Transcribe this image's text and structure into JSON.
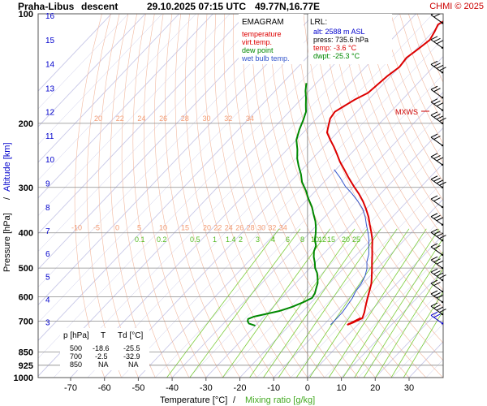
{
  "header": {
    "title": "Praha-Libus",
    "mode": "descent",
    "datetime": "29.10.2025 07:15 UTC",
    "position": "49.77N,16.77E",
    "copyright": "CHMI © 2025"
  },
  "legend": {
    "title": "EMAGRAM",
    "items": [
      {
        "label": "temperature",
        "color": "#dd0000"
      },
      {
        "label": "virt.temp.",
        "color": "#dd0000"
      },
      {
        "label": "dew point",
        "color": "#008800"
      },
      {
        "label": "wet bulb temp.",
        "color": "#3355cc"
      }
    ]
  },
  "lrl": {
    "title": "LRL:",
    "alt": "alt: 2588 m ASL",
    "press": "press: 735.6 hPa",
    "temp": "temp: -3.6 °C",
    "dwpt": "dwpt: -25.3 °C",
    "colors": {
      "alt": "#0000cc",
      "press": "#000000",
      "temp": "#dd0000",
      "dwpt": "#008800"
    }
  },
  "table": {
    "headers": [
      "p [hPa]",
      "T",
      "Td [°C]"
    ],
    "rows": [
      [
        "500",
        "-18.6",
        "-25.5"
      ],
      [
        "700",
        "-2.5",
        "-32.9"
      ],
      [
        "850",
        "NA",
        "NA"
      ]
    ]
  },
  "axes": {
    "xlabel": "Temperature [°C]",
    "xlabel_sep": "/",
    "xlabel2": "Mixing ratio [g/kg]",
    "ylabel": "Pressure [hPa]",
    "ylabel_sep": "/",
    "ylabel2": "Altitude [km]",
    "maxws": "MXWS"
  },
  "chart_data": {
    "type": "line",
    "x_ticks": [
      -70,
      -60,
      -50,
      -40,
      -30,
      -20,
      -10,
      0,
      10,
      20,
      30
    ],
    "xlim": [
      -80,
      35
    ],
    "ylim": [
      1000,
      100
    ],
    "y_scale": "log",
    "pressure_ticks": [
      100,
      200,
      300,
      400,
      500,
      600,
      700,
      850,
      925,
      1000
    ],
    "altitude_ticks": [
      {
        "km": 16,
        "p": 101
      },
      {
        "km": 15,
        "p": 118
      },
      {
        "km": 14,
        "p": 137
      },
      {
        "km": 13,
        "p": 160
      },
      {
        "km": 12,
        "p": 186
      },
      {
        "km": 11,
        "p": 216
      },
      {
        "km": 10,
        "p": 251
      },
      {
        "km": 9,
        "p": 292
      },
      {
        "km": 8,
        "p": 340
      },
      {
        "km": 7,
        "p": 394
      },
      {
        "km": 6,
        "p": 456
      },
      {
        "km": 5,
        "p": 527
      },
      {
        "km": 4,
        "p": 609
      },
      {
        "km": 3,
        "p": 703
      }
    ],
    "grid": true,
    "series": [
      {
        "name": "temperature",
        "color": "#dd0000",
        "points": [
          [
            -60.0,
            100
          ],
          [
            -59,
            102
          ],
          [
            -60.5,
            107
          ],
          [
            -59.5,
            112
          ],
          [
            -58.6,
            118
          ],
          [
            -59.5,
            125
          ],
          [
            -60.5,
            132
          ],
          [
            -60.0,
            140
          ],
          [
            -61.0,
            148
          ],
          [
            -61.5,
            156
          ],
          [
            -62.0,
            165
          ],
          [
            -64.0,
            172
          ],
          [
            -65.5,
            180
          ],
          [
            -66.5,
            186
          ],
          [
            -66.0,
            194
          ],
          [
            -64.5,
            203
          ],
          [
            -63.0,
            212
          ],
          [
            -60.0,
            222
          ],
          [
            -57.0,
            232
          ],
          [
            -54.0,
            243
          ],
          [
            -51.0,
            255
          ],
          [
            -47.5,
            268
          ],
          [
            -44.0,
            282
          ],
          [
            -40.0,
            298
          ],
          [
            -36.5,
            312
          ],
          [
            -33.0,
            328
          ],
          [
            -30.0,
            344
          ],
          [
            -27.0,
            362
          ],
          [
            -24.5,
            380
          ],
          [
            -22.0,
            398
          ],
          [
            -19.5,
            418
          ],
          [
            -17.5,
            438
          ],
          [
            -15.5,
            458
          ],
          [
            -13.5,
            480
          ],
          [
            -11.5,
            502
          ],
          [
            -9.5,
            526
          ],
          [
            -7.5,
            552
          ],
          [
            -6.0,
            578
          ],
          [
            -4.5,
            606
          ],
          [
            -3.0,
            634
          ],
          [
            -1.5,
            662
          ],
          [
            -0.5,
            686
          ],
          [
            -2.0,
            706
          ],
          [
            -3.0,
            716
          ]
        ]
      },
      {
        "name": "virt.temp.",
        "color": "#dd0000",
        "points": [
          [
            -3.1,
            716
          ],
          [
            -2.4,
            706
          ],
          [
            -1.0,
            686
          ]
        ]
      },
      {
        "name": "dew point",
        "color": "#008800",
        "points": [
          [
            -83.0,
            155
          ],
          [
            -81.0,
            163
          ],
          [
            -79.0,
            170
          ],
          [
            -77.0,
            178
          ],
          [
            -75.0,
            186
          ],
          [
            -73.5,
            196
          ],
          [
            -72.0,
            208
          ],
          [
            -70.0,
            222
          ],
          [
            -67.0,
            236
          ],
          [
            -64.5,
            250
          ],
          [
            -62.0,
            262
          ],
          [
            -59.0,
            276
          ],
          [
            -56.5,
            290
          ],
          [
            -53.0,
            306
          ],
          [
            -50.0,
            322
          ],
          [
            -46.5,
            340
          ],
          [
            -44.0,
            356
          ],
          [
            -41.5,
            372
          ],
          [
            -39.5,
            388
          ],
          [
            -38.0,
            402
          ],
          [
            -36.5,
            418
          ],
          [
            -34.5,
            434
          ],
          [
            -33.5,
            450
          ],
          [
            -32.0,
            466
          ],
          [
            -30.0,
            484
          ],
          [
            -28.5,
            500
          ],
          [
            -26.5,
            516
          ],
          [
            -25.0,
            532
          ],
          [
            -23.5,
            550
          ],
          [
            -22.5,
            568
          ],
          [
            -21.5,
            586
          ],
          [
            -21.0,
            604
          ],
          [
            -22.5,
            622
          ],
          [
            -24.5,
            640
          ],
          [
            -27.0,
            656
          ],
          [
            -30.5,
            670
          ],
          [
            -33.0,
            680
          ],
          [
            -34.0,
            690
          ],
          [
            -33.5,
            700
          ],
          [
            -32.5,
            710
          ],
          [
            -30.0,
            720
          ]
        ]
      },
      {
        "name": "wet bulb temp.",
        "color": "#3355cc",
        "points": [
          [
            -50.5,
            268
          ],
          [
            -46.5,
            282
          ],
          [
            -42.5,
            298
          ],
          [
            -38.5,
            312
          ],
          [
            -34.5,
            328
          ],
          [
            -31.0,
            344
          ],
          [
            -28.0,
            362
          ],
          [
            -25.5,
            380
          ],
          [
            -23.0,
            398
          ],
          [
            -20.5,
            418
          ],
          [
            -18.5,
            438
          ],
          [
            -16.5,
            458
          ],
          [
            -15.0,
            480
          ],
          [
            -13.0,
            502
          ],
          [
            -11.5,
            526
          ],
          [
            -10.5,
            552
          ],
          [
            -10.0,
            578
          ],
          [
            -9.0,
            606
          ],
          [
            -8.5,
            634
          ],
          [
            -8.0,
            662
          ],
          [
            -8.0,
            686
          ],
          [
            -8.0,
            716
          ]
        ]
      }
    ],
    "dry_adiabat_labels": [
      "-10",
      "-5",
      "0",
      "5",
      "10",
      "15",
      "20",
      "22",
      "24",
      "26",
      "28",
      "30",
      "32",
      "34"
    ],
    "dry_adiabat_labels_200": [
      "20",
      "22",
      "24",
      "26",
      "28",
      "30",
      "32",
      "34"
    ],
    "mixing_ratio_labels": [
      "0.1",
      "0.2",
      "0.5",
      "1",
      "1.4",
      "2",
      "3",
      "4",
      "6",
      "8",
      "10",
      "12",
      "15",
      "20",
      "25"
    ],
    "wind_levels_hpa": [
      106,
      124,
      145,
      170,
      184,
      200,
      230,
      260,
      300,
      340,
      380,
      420,
      460,
      500,
      540,
      580,
      620,
      670,
      710
    ]
  }
}
